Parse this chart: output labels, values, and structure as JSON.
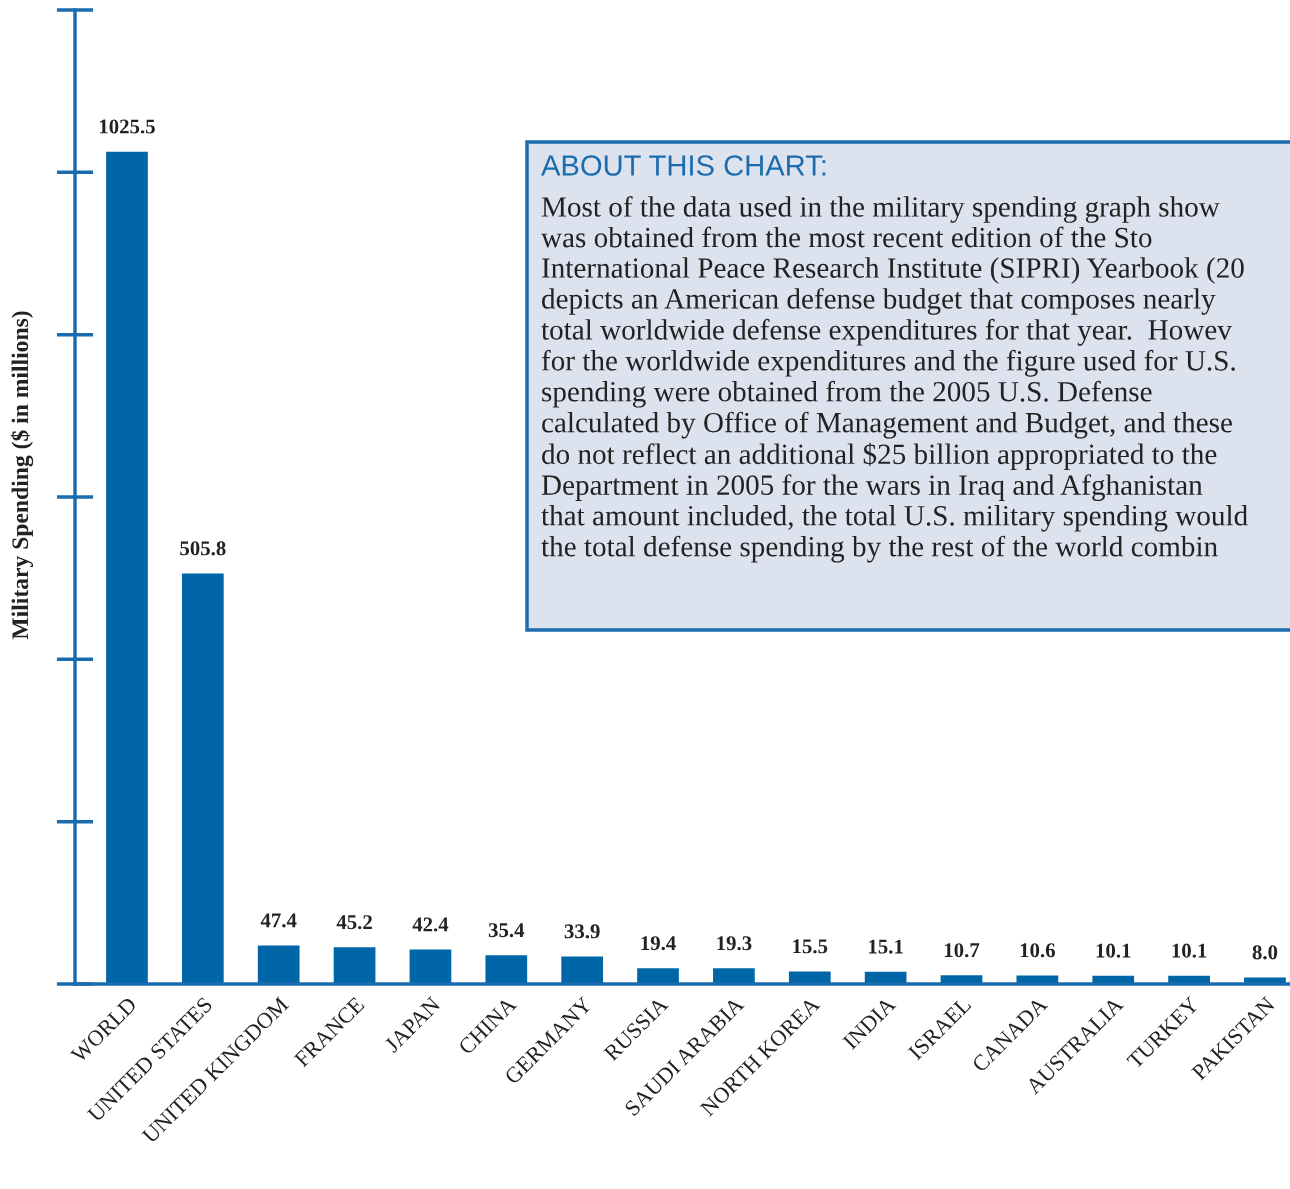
{
  "chart_data": {
    "type": "bar",
    "ylabel": "Military Spending ($ in millions)",
    "categories": [
      "WORLD",
      "UNITED STATES",
      "UNITED KINGDOM",
      "FRANCE",
      "JAPAN",
      "CHINA",
      "GERMANY",
      "RUSSIA",
      "SAUDI ARABIA",
      "NORTH KOREA",
      "INDIA",
      "ISRAEL",
      "CANADA",
      "AUSTRALIA",
      "TURKEY",
      "PAKISTAN"
    ],
    "values": [
      1025.5,
      505.8,
      47.4,
      45.2,
      42.4,
      35.4,
      33.9,
      19.4,
      19.3,
      15.5,
      15.1,
      10.7,
      10.6,
      10.1,
      10.1,
      8.0
    ],
    "value_labels": [
      "1025.5",
      "505.8",
      "47.4",
      "45.2",
      "42.4",
      "35.4",
      "33.9",
      "19.4",
      "19.3",
      "15.5",
      "15.1",
      "10.7",
      "10.6",
      "10.1",
      "10.1",
      "8.0"
    ],
    "color": "#0066a8",
    "ylim": [
      0,
      1200
    ],
    "tick_labels": "x",
    "grid": false,
    "annotations": [
      "ABOUT THIS CHART:",
      "Most of the data used in the military spending graph show\nwas obtained from the most recent edition of the Sto\nInternational Peace Research Institute (SIPRI) Yearbook (20\ndepicts an American defense budget that composes nearly\ntotal worldwide defense expenditures for that year.  Howev\nfor the worldwide expenditures and the figure used for U.S.\nspending were obtained from the 2005 U.S. Defense\ncalculated by Office of Management and Budget, and these\ndo not reflect an additional $25 billion appropriated to the\nDepartment in 2005 for the wars in Iraq and Afghanistan\nthat amount included, the total U.S. military spending would\nthe total defense spending by the rest of the world combin"
    ]
  }
}
